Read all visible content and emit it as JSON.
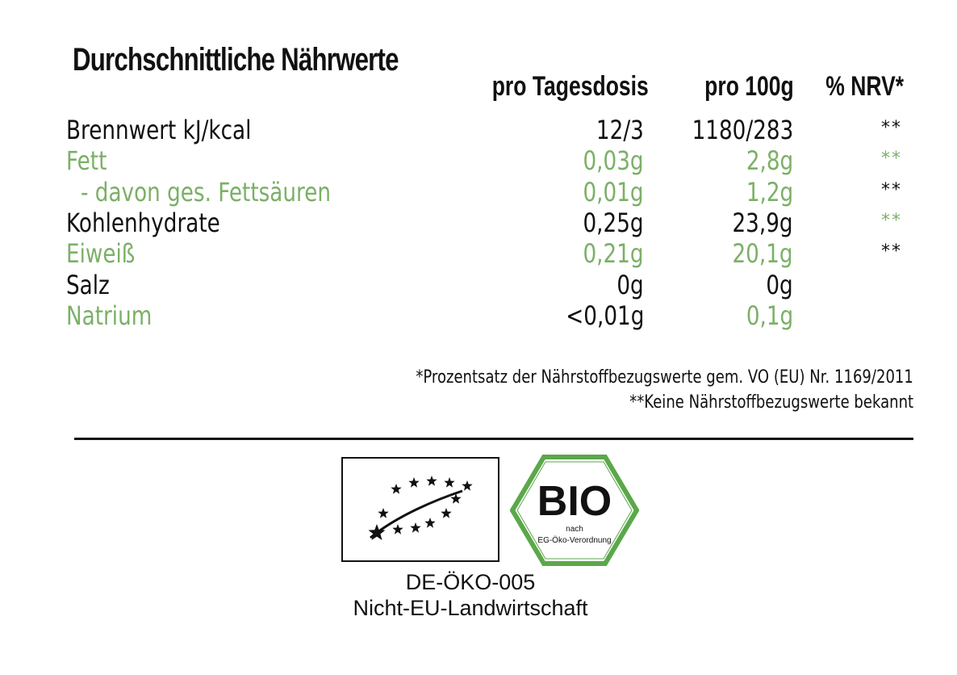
{
  "title": "Durchschnittliche Nährwerte",
  "columns": {
    "per_dose": "pro Tagesdosis",
    "per_100g": "pro 100g",
    "nrv": "% NRV*"
  },
  "rows": [
    {
      "label": "Brennwert kJ/kcal",
      "per_dose": "12/3",
      "per_100g": "1180/283",
      "nrv": "**",
      "color": "#111111",
      "nrv_color": "#111111"
    },
    {
      "label": "Fett",
      "per_dose": "0,03g",
      "per_100g": "2,8g",
      "nrv": "**",
      "color": "#7bb066",
      "nrv_color": "#7bb066"
    },
    {
      "label": "- davon ges. Fettsäuren",
      "per_dose": "0,01g",
      "per_100g": "1,2g",
      "nrv": "**",
      "color": "#7bb066",
      "nrv_color": "#111111"
    },
    {
      "label": "Kohlenhydrate",
      "per_dose": "0,25g",
      "per_100g": "23,9g",
      "nrv": "**",
      "color": "#111111",
      "nrv_color": "#7bb066"
    },
    {
      "label": "Eiweiß",
      "per_dose": "0,21g",
      "per_100g": "20,1g",
      "nrv": "**",
      "color": "#7bb066",
      "nrv_color": "#111111"
    },
    {
      "label": "Salz",
      "per_dose": "0g",
      "per_100g": "0g",
      "nrv": "",
      "color": "#111111",
      "nrv_color": "#111111"
    },
    {
      "label": "Natrium",
      "per_dose": "<0,01g",
      "per_100g": "0,1g",
      "nrv": "",
      "color": "#7bb066",
      "nrv_color": "#111111",
      "per_dose_color": "#111111"
    }
  ],
  "footnotes": {
    "nrv_note": "*Prozentsatz der Nährstoffbezugswerte gem. VO (EU) Nr. 1169/2011",
    "unknown_note": "**Keine Nährstoffbezugswerte bekannt"
  },
  "logos": {
    "eu_organic": "eu-organic-leaf-logo",
    "bio_seal": {
      "wordmark": "BIO",
      "line1": "nach",
      "line2": "EG-Öko-Verordnung"
    }
  },
  "certification": {
    "code": "DE-ÖKO-005",
    "origin": "Nicht-EU-Landwirtschaft"
  },
  "colors": {
    "accent_green": "#7bb066",
    "bio_green": "#5ba84a",
    "text": "#111111"
  }
}
